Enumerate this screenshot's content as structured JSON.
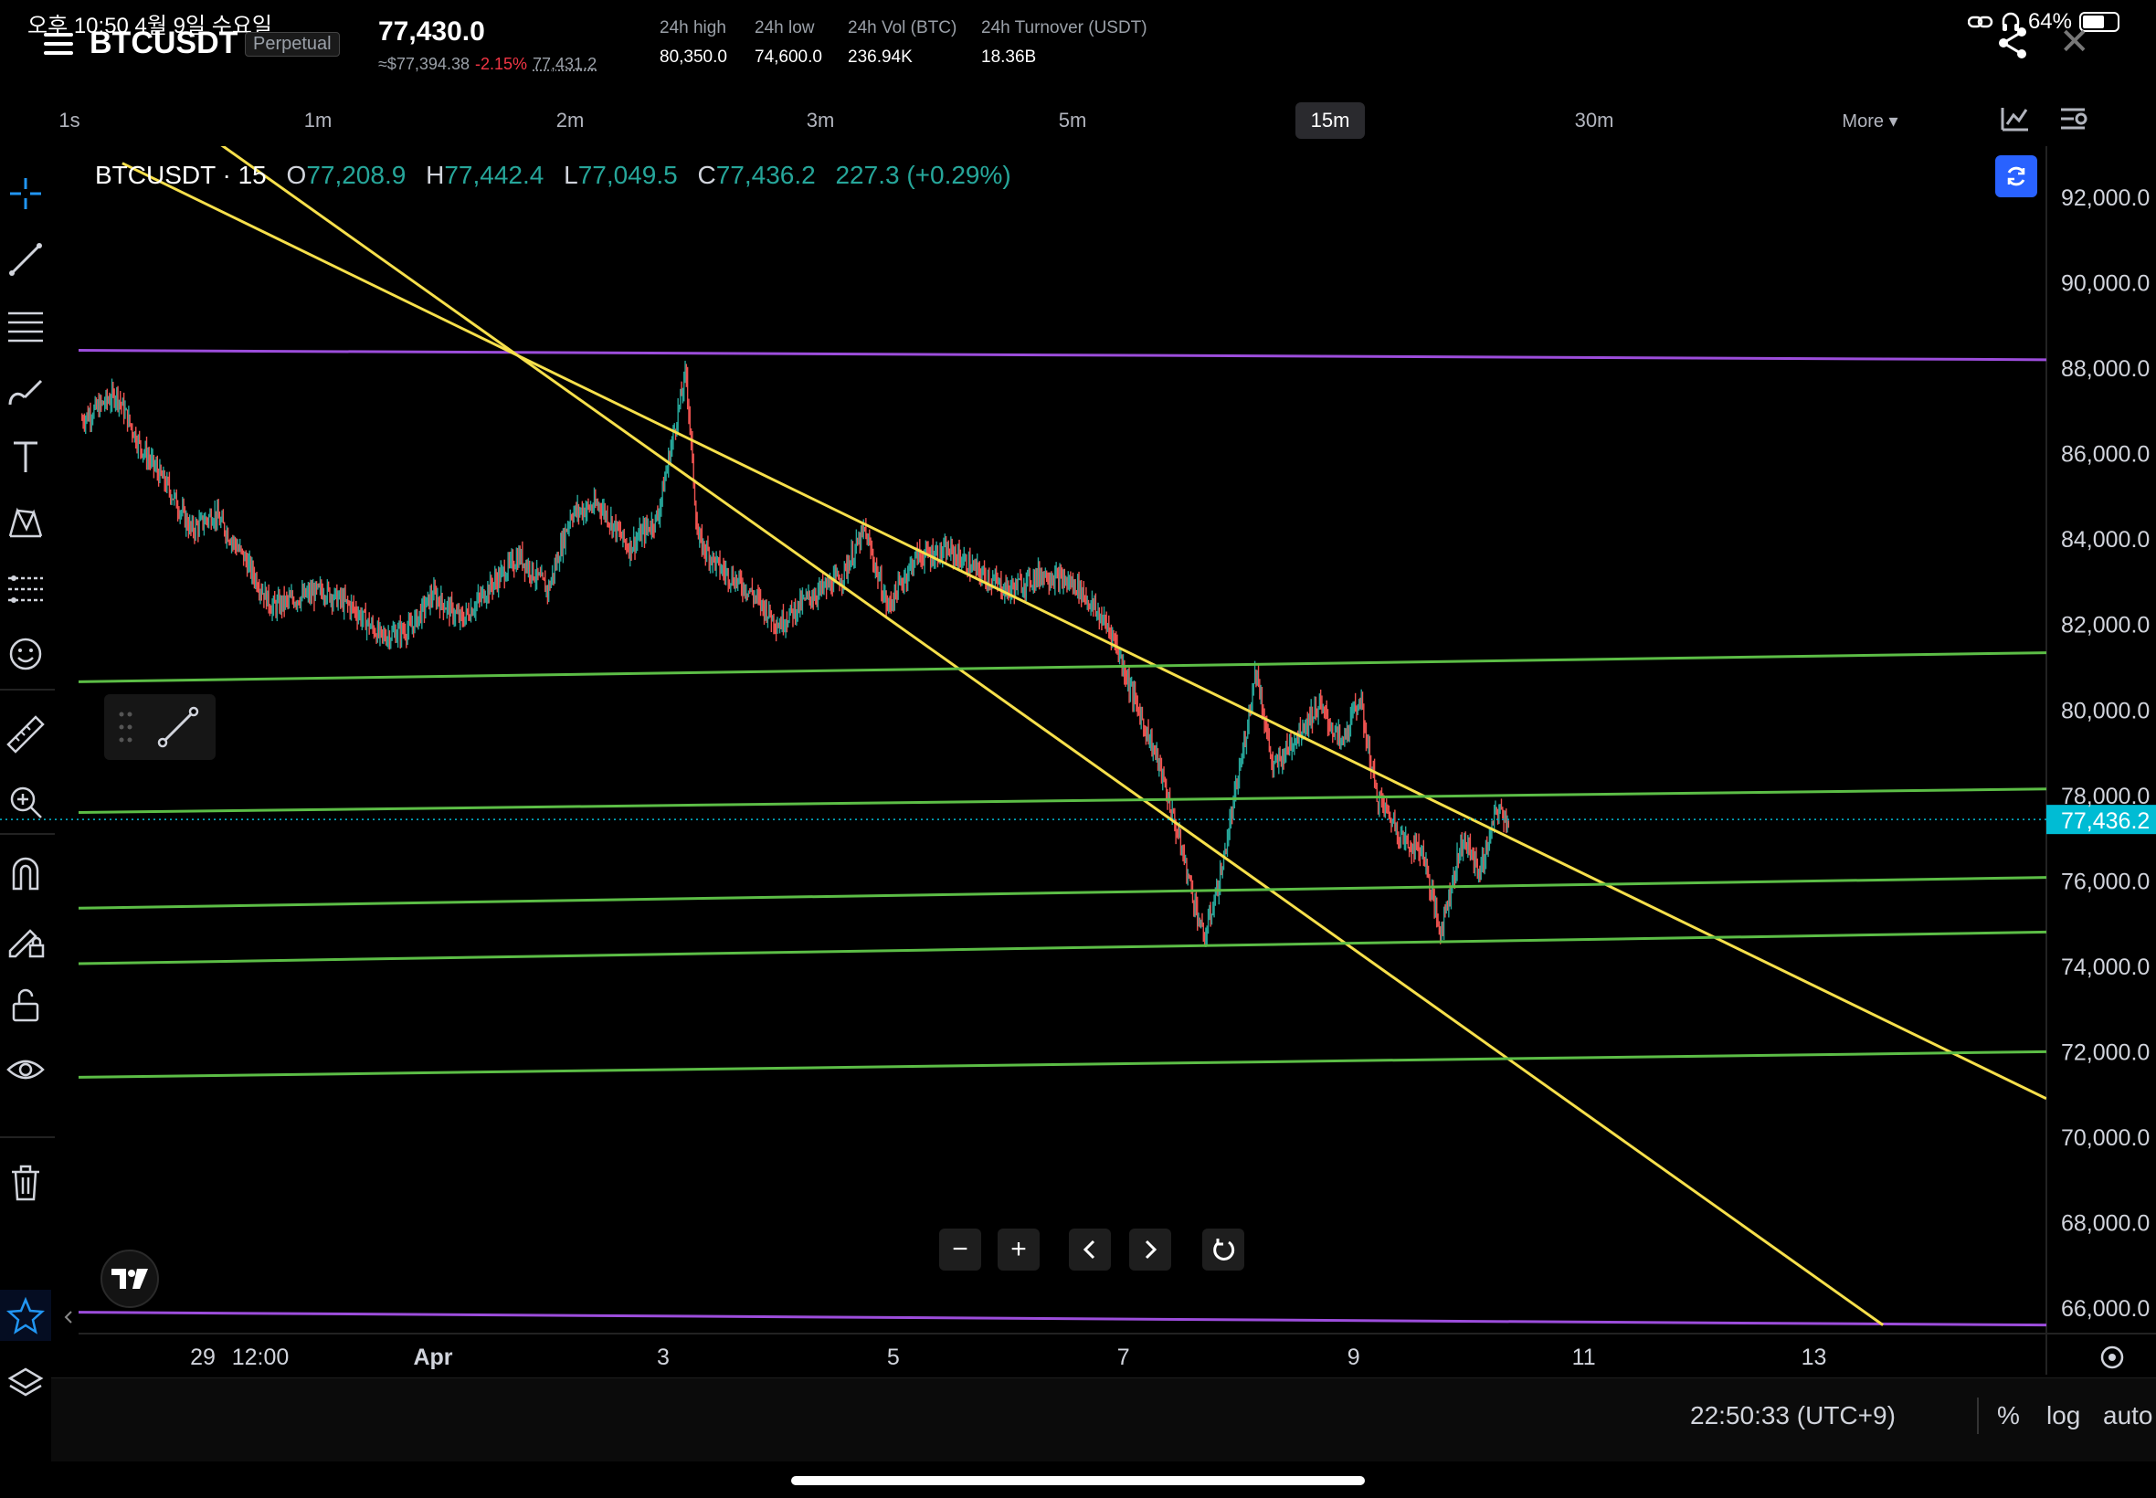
{
  "status_bar": {
    "time_date": "오후 10:50   4월 9일 수요일",
    "battery": "64%",
    "battery_level": 0.64
  },
  "header": {
    "symbol": "BTCUSDT",
    "contract_type": "Perpetual",
    "last_price": "77,430.0",
    "usd_equiv": "≈$77,394.38",
    "change_pct": "-2.15%",
    "mark_price": "77,431.2",
    "stats": [
      {
        "label": "24h high",
        "value": "80,350.0"
      },
      {
        "label": "24h low",
        "value": "74,600.0"
      },
      {
        "label": "24h Vol (BTC)",
        "value": "236.94K"
      },
      {
        "label": "24h Turnover (USDT)",
        "value": "18.36B"
      }
    ]
  },
  "intervals": [
    {
      "label": "1s",
      "active": false
    },
    {
      "label": "1m",
      "active": false
    },
    {
      "label": "2m",
      "active": false
    },
    {
      "label": "3m",
      "active": false
    },
    {
      "label": "5m",
      "active": false
    },
    {
      "label": "15m",
      "active": true
    },
    {
      "label": "30m",
      "active": false
    },
    {
      "label": "More ▾",
      "active": false
    }
  ],
  "toolbar_icons": [
    "crosshair-icon",
    "trend-line-icon",
    "fib-retracement-icon",
    "brush-icon",
    "text-icon",
    "pattern-icon",
    "prediction-icon",
    "emoji-icon",
    "ruler-icon",
    "zoom-in-icon",
    "magnet-icon",
    "lock-drawing-icon",
    "unlock-icon",
    "eye-icon",
    "trash-icon",
    "star-icon",
    "layers-icon"
  ],
  "legend": {
    "title": "BTCUSDT · 15",
    "open_label": "O",
    "open": "77,208.9",
    "high_label": "H",
    "high": "77,442.4",
    "low_label": "L",
    "low": "77,049.5",
    "close_label": "C",
    "close": "77,436.2",
    "change": "227.3 (+0.29%)"
  },
  "chart_data": {
    "type": "candlestick",
    "symbol": "BTCUSDT",
    "interval": "15",
    "price_axis": {
      "ticks": [
        "92,000.0",
        "90,000.0",
        "88,000.0",
        "86,000.0",
        "84,000.0",
        "82,000.0",
        "80,000.0",
        "78,000.0",
        "76,000.0",
        "74,000.0",
        "72,000.0",
        "70,000.0",
        "68,000.0",
        "66,000.0"
      ],
      "tick_values": [
        92000,
        90000,
        88000,
        86000,
        84000,
        82000,
        80000,
        78000,
        76000,
        74000,
        72000,
        70000,
        68000,
        66000
      ],
      "current_price_label": "77,436.2",
      "current_price": 77436.2
    },
    "time_axis": {
      "labels": [
        "29",
        "12:00",
        "Apr",
        "3",
        "5",
        "7",
        "9",
        "11",
        "13"
      ],
      "day_positions": [
        -3.0,
        -2.5,
        -1.0,
        1.0,
        3.0,
        5.0,
        7.0,
        9.0,
        11.0
      ]
    },
    "view": {
      "day_min": -4.08,
      "day_max": 13.02,
      "price_min": 65400,
      "price_max": 93200
    },
    "price_path": [
      [
        -4.05,
        86800
      ],
      [
        -3.75,
        87400
      ],
      [
        -3.55,
        86200
      ],
      [
        -3.3,
        85200
      ],
      [
        -3.1,
        84200
      ],
      [
        -2.9,
        84600
      ],
      [
        -2.65,
        83600
      ],
      [
        -2.4,
        82400
      ],
      [
        -2.2,
        82600
      ],
      [
        -1.95,
        82800
      ],
      [
        -1.7,
        82400
      ],
      [
        -1.45,
        81700
      ],
      [
        -1.2,
        81900
      ],
      [
        -1.0,
        82700
      ],
      [
        -0.75,
        82100
      ],
      [
        -0.5,
        82900
      ],
      [
        -0.25,
        83600
      ],
      [
        0.0,
        82800
      ],
      [
        0.2,
        84600
      ],
      [
        0.45,
        84800
      ],
      [
        0.7,
        83800
      ],
      [
        0.95,
        84500
      ],
      [
        1.1,
        86600
      ],
      [
        1.2,
        87900
      ],
      [
        1.3,
        84000
      ],
      [
        1.5,
        83300
      ],
      [
        1.75,
        82800
      ],
      [
        2.0,
        82000
      ],
      [
        2.25,
        82600
      ],
      [
        2.55,
        83100
      ],
      [
        2.75,
        84200
      ],
      [
        2.95,
        82400
      ],
      [
        3.2,
        83600
      ],
      [
        3.5,
        83700
      ],
      [
        3.75,
        83200
      ],
      [
        4.0,
        82800
      ],
      [
        4.3,
        83200
      ],
      [
        4.6,
        82900
      ],
      [
        4.9,
        81800
      ],
      [
        5.1,
        80200
      ],
      [
        5.3,
        78800
      ],
      [
        5.5,
        76800
      ],
      [
        5.7,
        74600
      ],
      [
        5.85,
        76200
      ],
      [
        6.05,
        79200
      ],
      [
        6.15,
        81000
      ],
      [
        6.3,
        78600
      ],
      [
        6.5,
        79400
      ],
      [
        6.7,
        80100
      ],
      [
        6.9,
        79200
      ],
      [
        7.05,
        80300
      ],
      [
        7.2,
        78000
      ],
      [
        7.45,
        76900
      ],
      [
        7.6,
        76700
      ],
      [
        7.75,
        74800
      ],
      [
        7.95,
        77000
      ],
      [
        8.1,
        76200
      ],
      [
        8.25,
        77700
      ],
      [
        8.35,
        77400
      ]
    ],
    "drawn_lines": [
      {
        "color": "#9c4ddb",
        "points": [
          [
            -4.08,
            88420
          ],
          [
            13.02,
            88200
          ]
        ]
      },
      {
        "color": "#9c4ddb",
        "points": [
          [
            -4.08,
            65900
          ],
          [
            13.02,
            65600
          ]
        ]
      },
      {
        "color": "#f7e04b",
        "points": [
          [
            -3.7,
            92800
          ],
          [
            13.02,
            70900
          ]
        ]
      },
      {
        "color": "#f7e04b",
        "points": [
          [
            -4.08,
            95600
          ],
          [
            11.6,
            65600
          ]
        ]
      },
      {
        "color": "#5cbd46",
        "points": [
          [
            -4.08,
            80660
          ],
          [
            13.02,
            81340
          ]
        ]
      },
      {
        "color": "#5cbd46",
        "points": [
          [
            -4.08,
            77600
          ],
          [
            13.02,
            78150
          ]
        ]
      },
      {
        "color": "#5cbd46",
        "points": [
          [
            -4.08,
            75360
          ],
          [
            13.02,
            76080
          ]
        ]
      },
      {
        "color": "#5cbd46",
        "points": [
          [
            -4.08,
            74060
          ],
          [
            13.02,
            74800
          ]
        ]
      },
      {
        "color": "#5cbd46",
        "points": [
          [
            -4.08,
            71400
          ],
          [
            13.02,
            72000
          ]
        ]
      }
    ]
  },
  "bottom_bar": {
    "time": "22:50:33 (UTC+9)",
    "percent": "%",
    "log": "log",
    "auto": "auto"
  },
  "colors": {
    "up": "#26a69a",
    "down": "#ef5350",
    "price_label_bg": "#00bcd4"
  }
}
